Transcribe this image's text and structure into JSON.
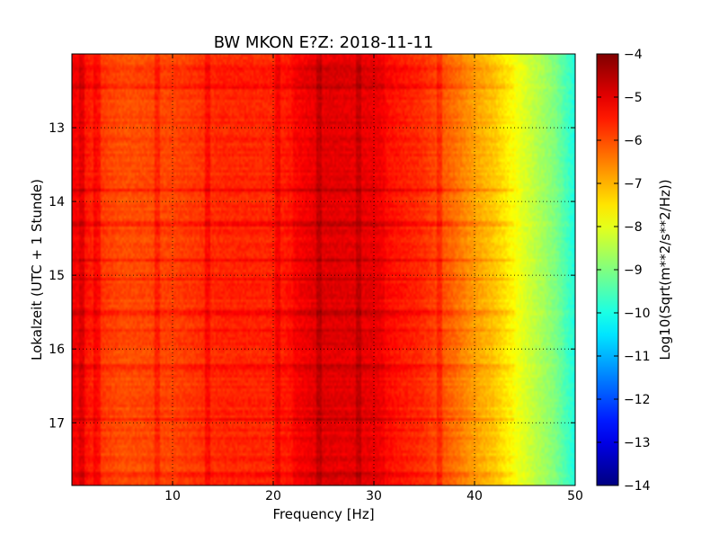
{
  "chart_data": {
    "type": "heatmap",
    "title": "BW MKON E?Z: 2018-11-11",
    "xlabel": "Frequency [Hz]",
    "ylabel": "Lokalzeit (UTC + 1 Stunde)",
    "colorbar_label": "Log10(Sqrt(m**2/s**2/Hz))",
    "xlim": [
      0,
      50
    ],
    "ylim": [
      17.85,
      12.0
    ],
    "y_inverted": true,
    "x_ticks": [
      10,
      20,
      30,
      40,
      50
    ],
    "y_ticks": [
      13,
      14,
      15,
      16,
      17
    ],
    "colorbar_range": [
      -14,
      -4
    ],
    "colorbar_ticks": [
      -4,
      -5,
      -6,
      -7,
      -8,
      -9,
      -10,
      -11,
      -12,
      -13,
      -14
    ],
    "colormap": "jet",
    "grid": true,
    "profile": {
      "description_points_freq_hz": [
        0,
        1,
        3,
        5,
        10,
        15,
        20,
        25,
        30,
        35,
        38,
        40,
        42,
        44,
        45,
        46,
        47,
        48,
        49,
        50
      ],
      "level_log10": [
        -5.1,
        -5.3,
        -5.8,
        -6.0,
        -5.9,
        -5.6,
        -5.6,
        -5.1,
        -5.2,
        -5.7,
        -6.3,
        -6.8,
        -7.2,
        -7.8,
        -8.1,
        -8.4,
        -8.7,
        -9.0,
        -9.5,
        -10.0
      ]
    },
    "strong_lines_hz": [
      1.0,
      2.5,
      8.5,
      13.5,
      20.5,
      24.5,
      28.5,
      36.5
    ],
    "strong_times_h": [
      12.2,
      12.45,
      13.85,
      14.3,
      14.8,
      15.05,
      15.5,
      15.75,
      16.25,
      16.95,
      17.7
    ]
  }
}
